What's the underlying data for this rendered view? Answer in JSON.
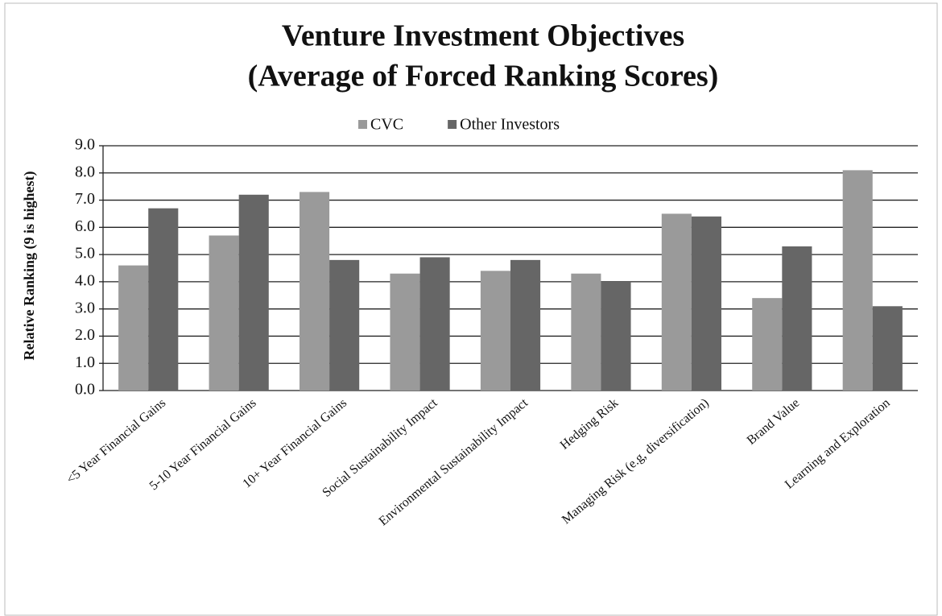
{
  "chart_data": {
    "type": "bar",
    "title": [
      "Venture Investment Objectives",
      "(Average of Forced Ranking Scores)"
    ],
    "y_label": "Relative Ranking (9 is highest)",
    "categories": [
      "<5 Year Financial Gains",
      "5-10 Year Financial Gains",
      "10+ Year Financial Gains",
      "Social Sustainability Impact",
      "Environmental Sustainability Impact",
      "Hedging Risk",
      "Managing Risk (e.g, diversification)",
      "Brand Value",
      "Learning and Exploration"
    ],
    "series": [
      {
        "name": "CVC",
        "color": "#9a9a9a",
        "values": [
          4.6,
          5.7,
          7.3,
          4.3,
          4.4,
          4.3,
          6.5,
          3.4,
          8.1
        ]
      },
      {
        "name": "Other Investors",
        "color": "#666666",
        "values": [
          6.7,
          7.2,
          4.8,
          4.9,
          4.8,
          4.0,
          6.4,
          5.3,
          3.1
        ]
      }
    ],
    "ylim": [
      0,
      9
    ],
    "yticks": [
      {
        "value": 0,
        "label": "0.0"
      },
      {
        "value": 1,
        "label": "1.0"
      },
      {
        "value": 2,
        "label": "2.0"
      },
      {
        "value": 3,
        "label": "3.0"
      },
      {
        "value": 4,
        "label": "4.0"
      },
      {
        "value": 5,
        "label": "5.0"
      },
      {
        "value": 6,
        "label": "6.0"
      },
      {
        "value": 7,
        "label": "7.0"
      },
      {
        "value": 8,
        "label": "8.0"
      },
      {
        "value": 9,
        "label": "9.0"
      }
    ],
    "grid": true,
    "legend": "top"
  }
}
